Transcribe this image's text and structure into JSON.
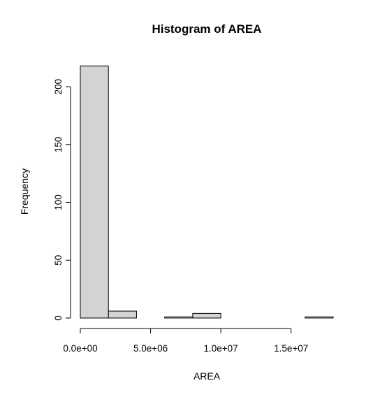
{
  "chart_data": {
    "type": "bar",
    "title": "Histogram of AREA",
    "xlabel": "AREA",
    "ylabel": "Frequency",
    "bin_edges": [
      0,
      2000000,
      4000000,
      6000000,
      8000000,
      10000000,
      12000000,
      14000000,
      16000000,
      18000000
    ],
    "values": [
      218,
      6,
      0,
      1,
      4,
      0,
      0,
      0,
      1
    ],
    "xlim": [
      0,
      18000000
    ],
    "ylim": [
      0,
      220
    ],
    "x_ticks": [
      {
        "value": 0,
        "label": "0.0e+00"
      },
      {
        "value": 5000000,
        "label": "5.0e+06"
      },
      {
        "value": 10000000,
        "label": "1.0e+07"
      },
      {
        "value": 15000000,
        "label": "1.5e+07"
      }
    ],
    "y_ticks": [
      {
        "value": 0,
        "label": "0"
      },
      {
        "value": 50,
        "label": "50"
      },
      {
        "value": 100,
        "label": "100"
      },
      {
        "value": 150,
        "label": "150"
      },
      {
        "value": 200,
        "label": "200"
      }
    ],
    "grid": false,
    "bar_color": "#d3d3d3",
    "edge_color": "#000000"
  }
}
